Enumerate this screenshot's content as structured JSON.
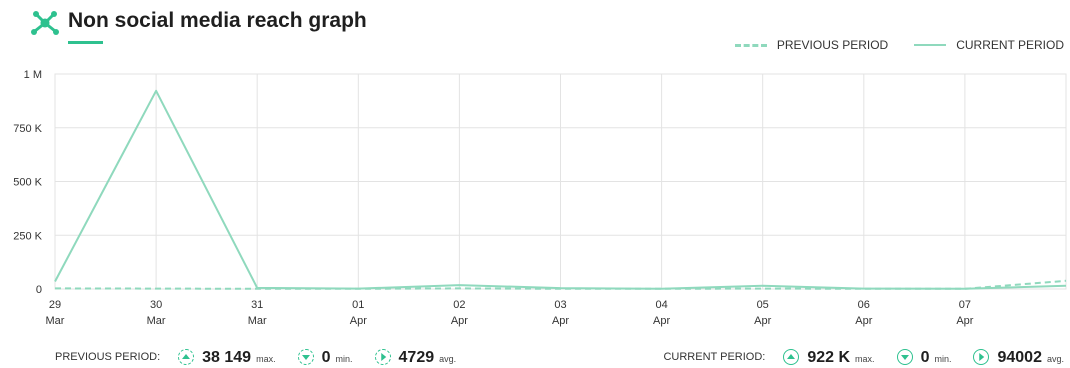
{
  "header": {
    "title": "Non social media reach graph",
    "icon": "network-icon",
    "accent": "#2ec18f"
  },
  "legend": {
    "previous": "PREVIOUS PERIOD",
    "current": "CURRENT PERIOD"
  },
  "chart_data": {
    "type": "line",
    "categories": [
      [
        "29",
        "Mar"
      ],
      [
        "30",
        "Mar"
      ],
      [
        "31",
        "Mar"
      ],
      [
        "01",
        "Apr"
      ],
      [
        "02",
        "Apr"
      ],
      [
        "03",
        "Apr"
      ],
      [
        "04",
        "Apr"
      ],
      [
        "05",
        "Apr"
      ],
      [
        "06",
        "Apr"
      ],
      [
        "07",
        "Apr"
      ],
      [
        "",
        ""
      ]
    ],
    "series": [
      {
        "name": "CURRENT PERIOD",
        "style": "solid",
        "color": "#8fd9bd",
        "values": [
          35000,
          922000,
          5000,
          2000,
          18000,
          4000,
          1000,
          15000,
          2000,
          1000,
          15000
        ]
      },
      {
        "name": "PREVIOUS PERIOD",
        "style": "dashed",
        "color": "#8fd9bd",
        "values": [
          3000,
          2000,
          1000,
          1000,
          3000,
          1000,
          1000,
          2000,
          1000,
          1000,
          38149
        ]
      }
    ],
    "ylim": [
      0,
      1000000
    ],
    "yticks": [
      0,
      250000,
      500000,
      750000,
      1000000
    ],
    "ytick_labels": [
      "0",
      "250 K",
      "500 K",
      "750 K",
      "1 M"
    ],
    "grid": true,
    "legend_position": "top-right"
  },
  "footer": {
    "previous": {
      "label": "PREVIOUS PERIOD:",
      "max": "38 149",
      "max_unit": "max.",
      "min": "0",
      "min_unit": "min.",
      "avg": "4729",
      "avg_unit": "avg."
    },
    "current": {
      "label": "CURRENT PERIOD:",
      "max": "922 K",
      "max_unit": "max.",
      "min": "0",
      "min_unit": "min.",
      "avg": "94002",
      "avg_unit": "avg."
    }
  }
}
